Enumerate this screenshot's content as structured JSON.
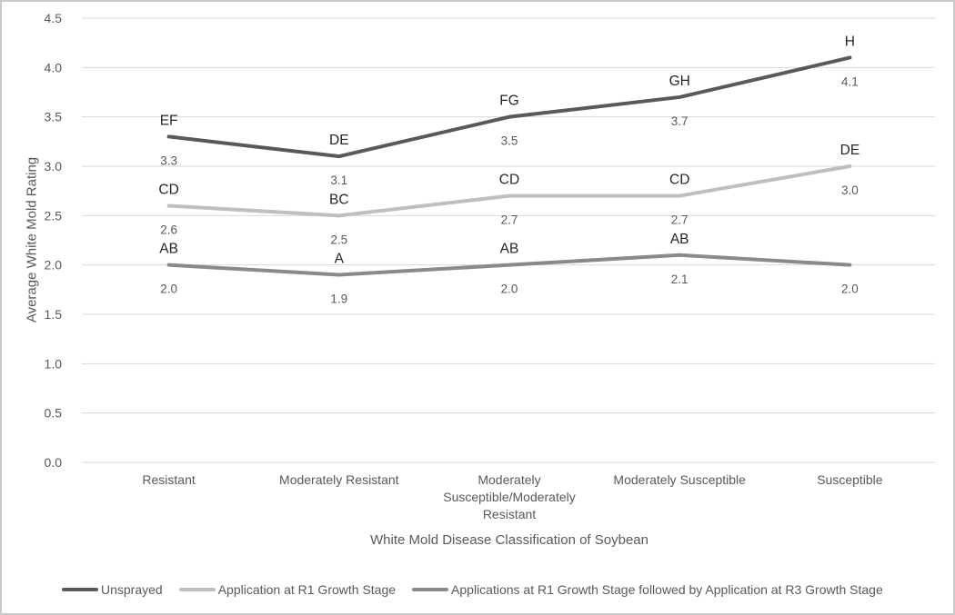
{
  "chart_data": {
    "type": "line",
    "title": "",
    "xlabel": "White Mold Disease Classification of Soybean",
    "ylabel": "Average White Mold Rating",
    "ylim": [
      0,
      4.5
    ],
    "ytick_step": 0.5,
    "grid": true,
    "legend_position": "bottom",
    "categories": [
      "Resistant",
      "Moderately Resistant",
      "Moderately Susceptible/Moderately Resistant",
      "Moderately Susceptible",
      "Susceptible"
    ],
    "category_label_lines": [
      [
        "Resistant"
      ],
      [
        "Moderately Resistant"
      ],
      [
        "Moderately",
        "Susceptible/Moderately",
        "Resistant"
      ],
      [
        "Moderately Susceptible"
      ],
      [
        "Susceptible"
      ]
    ],
    "series": [
      {
        "name": "Unsprayed",
        "color": "#595959",
        "values": [
          3.3,
          3.1,
          3.5,
          3.7,
          4.1
        ],
        "letter_labels": [
          "EF",
          "DE",
          "FG",
          "GH",
          "H"
        ]
      },
      {
        "name": "Application at R1 Growth Stage",
        "color": "#bfbfbf",
        "values": [
          2.6,
          2.5,
          2.7,
          2.7,
          3.0
        ],
        "letter_labels": [
          "CD",
          "BC",
          "CD",
          "CD",
          "DE"
        ]
      },
      {
        "name": "Applications at R1 Growth Stage followed by Application at R3 Growth Stage",
        "color": "#8a8a8a",
        "values": [
          2.0,
          1.9,
          2.0,
          2.1,
          2.0
        ],
        "letter_labels": [
          "AB",
          "A",
          "AB",
          "AB",
          ""
        ]
      }
    ],
    "colors": {
      "gridline": "#d9d9d9",
      "tick_label": "#595959",
      "axis_title": "#595959",
      "letter_label": "#262626",
      "value_label": "#595959",
      "border": "#c9c9c9",
      "background": "#ffffff"
    }
  }
}
